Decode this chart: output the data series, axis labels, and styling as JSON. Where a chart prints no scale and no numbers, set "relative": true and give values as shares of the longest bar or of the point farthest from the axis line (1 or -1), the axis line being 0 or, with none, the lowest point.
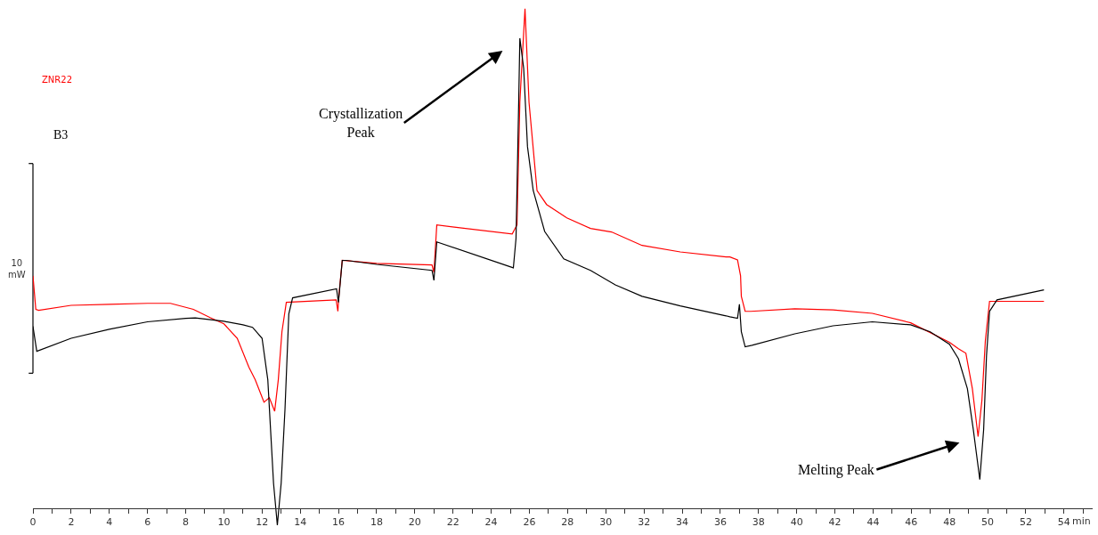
{
  "chart_data": {
    "type": "line",
    "relative": true,
    "xlabel": "min",
    "xlim": [
      0,
      55.5
    ],
    "xticks": [
      0,
      {
        "value": 1,
        "label": null
      },
      2,
      {
        "value": 3,
        "label": null
      },
      4,
      {
        "value": 5,
        "label": null
      },
      6,
      {
        "value": 7,
        "label": null
      },
      8,
      {
        "value": 9,
        "label": null
      },
      10,
      {
        "value": 11,
        "label": null
      },
      12,
      {
        "value": 13,
        "label": null
      },
      14,
      {
        "value": 15,
        "label": null
      },
      16,
      {
        "value": 17,
        "label": null
      },
      18,
      {
        "value": 19,
        "label": null
      },
      20,
      {
        "value": 21,
        "label": null
      },
      22,
      {
        "value": 23,
        "label": null
      },
      24,
      {
        "value": 25,
        "label": null
      },
      26,
      {
        "value": 27,
        "label": null
      },
      28,
      {
        "value": 29,
        "label": null
      },
      30,
      {
        "value": 31,
        "label": null
      },
      32,
      {
        "value": 33,
        "label": null
      },
      34,
      {
        "value": 35,
        "label": null
      },
      36,
      {
        "value": 37,
        "label": null
      },
      38,
      {
        "value": 39,
        "label": null
      },
      40,
      {
        "value": 41,
        "label": null
      },
      42,
      {
        "value": 43,
        "label": null
      },
      44,
      {
        "value": 45,
        "label": null
      },
      46,
      {
        "value": 47,
        "label": null
      },
      48,
      {
        "value": 49,
        "label": null
      },
      50,
      {
        "value": 51,
        "label": null
      },
      52,
      {
        "value": 53,
        "label": null
      },
      54,
      {
        "value": 55,
        "label": null
      }
    ],
    "marker": "none",
    "line_style": "solid",
    "series": [
      {
        "name": "ZNR22",
        "color": "#ff0000",
        "x": [
          0,
          0.15,
          0.3,
          2,
          4,
          6,
          7.2,
          8.4,
          9.3,
          10,
          10.7,
          11.31,
          11.64,
          12.1,
          12.38,
          12.66,
          12.85,
          13.04,
          13.27,
          15.88,
          15.97,
          16.02,
          16.2,
          18,
          20.9,
          21.0,
          21.15,
          25.1,
          25.35,
          25.5,
          25.77,
          25.98,
          26.4,
          26.9,
          27.96,
          29.2,
          30.3,
          31.9,
          33.9,
          36.3,
          36.5,
          36.9,
          37.06,
          37.1,
          37.3,
          37.6,
          39.9,
          41.9,
          43.96,
          45.97,
          48.0,
          48.47,
          48.86,
          49.2,
          49.5,
          49.7,
          49.88,
          50.1,
          52.95
        ],
        "values": [
          0.465,
          0.398,
          0.396,
          0.406,
          0.408,
          0.41,
          0.41,
          0.398,
          0.381,
          0.369,
          0.34,
          0.282,
          0.257,
          0.212,
          0.221,
          0.194,
          0.257,
          0.353,
          0.412,
          0.417,
          0.394,
          0.424,
          0.496,
          0.49,
          0.487,
          0.472,
          0.567,
          0.549,
          0.567,
          0.813,
          1.0,
          0.813,
          0.636,
          0.608,
          0.581,
          0.56,
          0.553,
          0.526,
          0.513,
          0.503,
          0.503,
          0.497,
          0.465,
          0.424,
          0.394,
          0.394,
          0.399,
          0.397,
          0.39,
          0.371,
          0.332,
          0.319,
          0.31,
          0.239,
          0.143,
          0.216,
          0.335,
          0.414,
          0.414
        ]
      },
      {
        "name": "B3",
        "color": "#000000",
        "x": [
          0,
          0.2,
          2,
          4,
          6,
          8,
          8.5,
          10,
          11,
          11.5,
          12,
          12.3,
          12.6,
          12.8,
          13,
          13.2,
          13.4,
          13.6,
          15.9,
          16.0,
          16.2,
          16.4,
          18,
          20.9,
          21.0,
          21.15,
          25.16,
          25.3,
          25.44,
          25.5,
          25.7,
          25.9,
          26.2,
          26.8,
          27.8,
          29.2,
          30.5,
          31.9,
          33.9,
          36.3,
          36.5,
          36.9,
          37.0,
          37.1,
          37.3,
          37.66,
          39.9,
          41.9,
          43.96,
          45.97,
          46.99,
          48.0,
          48.47,
          48.94,
          49.25,
          49.59,
          49.79,
          49.94,
          50.1,
          50.49,
          52.95
        ],
        "values": [
          0.364,
          0.314,
          0.34,
          0.358,
          0.373,
          0.38,
          0.381,
          0.374,
          0.367,
          0.362,
          0.34,
          0.257,
          0.05,
          -0.034,
          0.05,
          0.198,
          0.389,
          0.421,
          0.439,
          0.412,
          0.496,
          0.496,
          0.488,
          0.476,
          0.456,
          0.533,
          0.481,
          0.54,
          0.813,
          0.941,
          0.881,
          0.724,
          0.636,
          0.554,
          0.499,
          0.476,
          0.447,
          0.424,
          0.405,
          0.385,
          0.383,
          0.38,
          0.408,
          0.353,
          0.323,
          0.326,
          0.349,
          0.365,
          0.373,
          0.367,
          0.353,
          0.328,
          0.299,
          0.239,
          0.157,
          0.057,
          0.157,
          0.305,
          0.394,
          0.417,
          0.437
        ]
      }
    ],
    "annotations": [
      {
        "text": "Crystallization\nPeak",
        "x": 25.5,
        "y": 0.941
      },
      {
        "text": "Melting Peak",
        "x": 49.5,
        "y": 0.143
      },
      "10\nmW"
    ]
  }
}
